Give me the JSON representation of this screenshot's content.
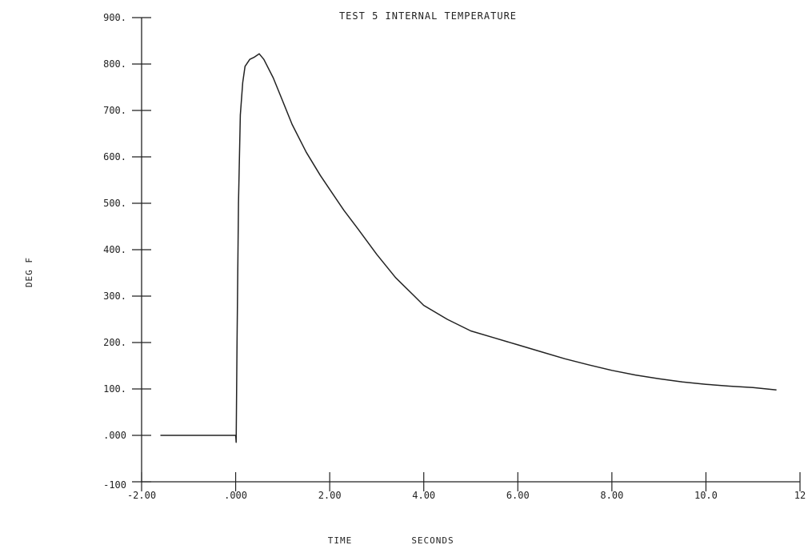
{
  "chart_data": {
    "type": "line",
    "title": "TEST 5 INTERNAL TEMPERATURE",
    "xlabel": "TIME",
    "xunits": "SECONDS",
    "ylabel": "DEG F",
    "xlim": [
      -2.0,
      12.0
    ],
    "ylim": [
      -100,
      900
    ],
    "x_ticks": [
      -2,
      0,
      2,
      4,
      6,
      8,
      10,
      12
    ],
    "x_tick_labels": [
      "-2.00",
      ".000",
      "2.00",
      "4.00",
      "6.00",
      "8.00",
      "10.0",
      "12"
    ],
    "y_ticks": [
      -100,
      0,
      100,
      200,
      300,
      400,
      500,
      600,
      700,
      800,
      900
    ],
    "y_tick_labels": [
      "-100",
      ".000",
      "100.",
      "200.",
      "300.",
      "400.",
      "500.",
      "600.",
      "700.",
      "800.",
      "900."
    ],
    "grid": false,
    "series": [
      {
        "x": [
          -1.6,
          -1.0,
          -0.5,
          0.0,
          0.01,
          0.03,
          0.06,
          0.1,
          0.15,
          0.2,
          0.3,
          0.4,
          0.5,
          0.6,
          0.8,
          1.0,
          1.2,
          1.5,
          1.8,
          2.0,
          2.3,
          2.6,
          3.0,
          3.4,
          3.8,
          4.0,
          4.5,
          5.0,
          5.5,
          6.0,
          6.5,
          7.0,
          7.5,
          8.0,
          8.5,
          9.0,
          9.5,
          10.0,
          10.5,
          11.0,
          11.5
        ],
        "y": [
          0,
          0,
          0,
          0,
          -15,
          200,
          500,
          690,
          760,
          795,
          810,
          815,
          822,
          810,
          770,
          720,
          670,
          610,
          560,
          530,
          485,
          445,
          390,
          340,
          300,
          280,
          250,
          225,
          210,
          195,
          180,
          165,
          152,
          140,
          130,
          122,
          115,
          110,
          106,
          103,
          98
        ]
      }
    ]
  }
}
